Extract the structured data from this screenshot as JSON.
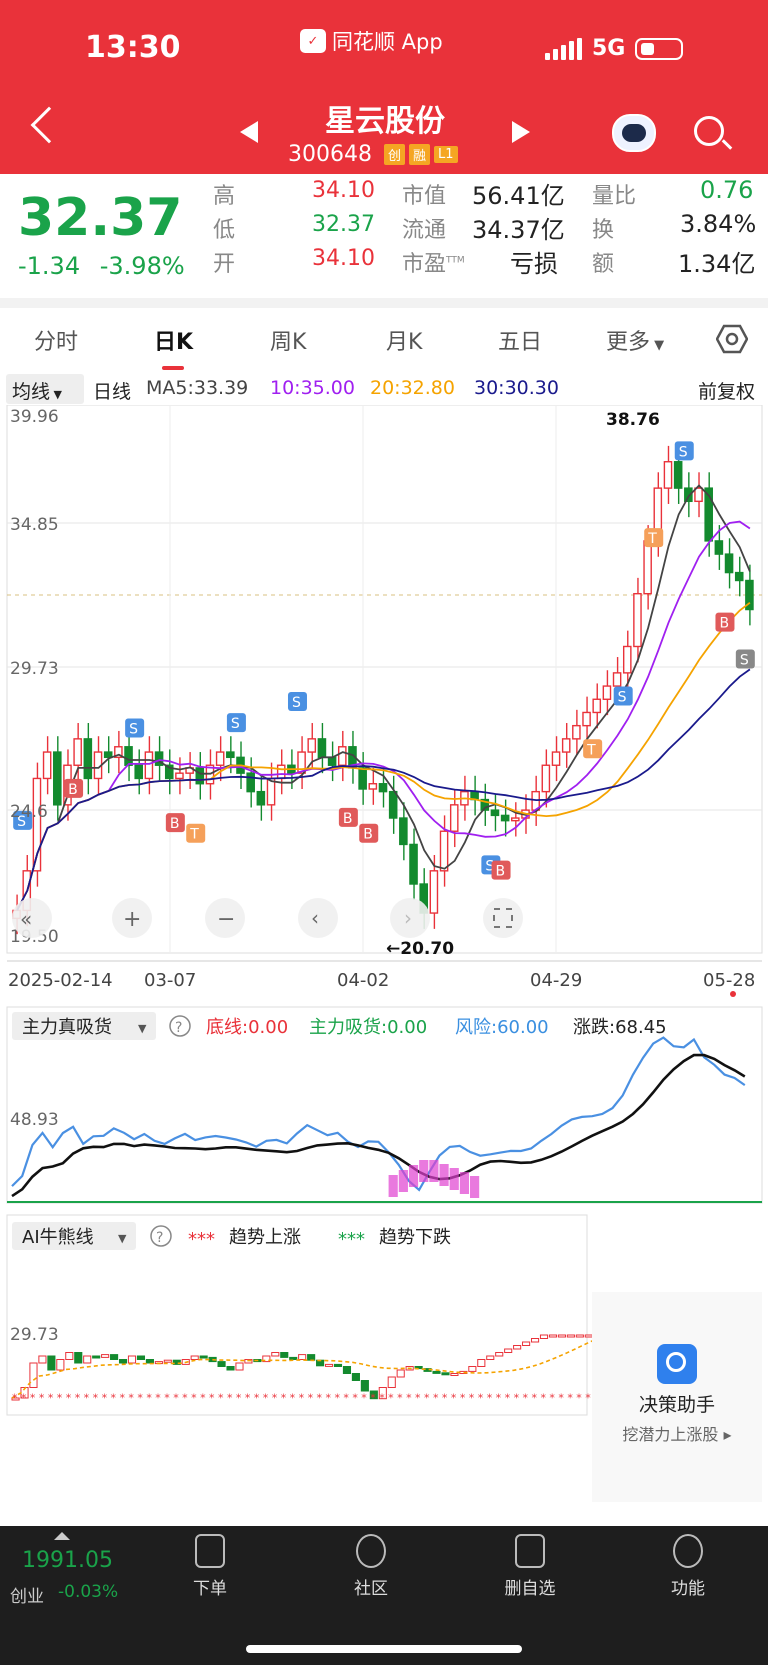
{
  "status": {
    "time": "13:30",
    "app_name": "同花顺 App",
    "network": "5G"
  },
  "header": {
    "stock_name": "星云股份",
    "code": "300648",
    "tags": [
      "创",
      "融",
      "L1"
    ]
  },
  "quote": {
    "price": "32.37",
    "change": "-1.34",
    "change_pct": "-3.98%",
    "high_label": "高",
    "high": "34.10",
    "low_label": "低",
    "low": "32.37",
    "open_label": "开",
    "open": "34.10",
    "mcap_label": "市值",
    "mcap": "56.41亿",
    "float_label": "流通",
    "float": "34.37亿",
    "pe_label": "市盈",
    "pe_sup": "TTM",
    "pe": "亏损",
    "vr_label": "量比",
    "vr": "0.76",
    "turn_label": "换",
    "turn": "3.84%",
    "amt_label": "额",
    "amt": "1.34亿"
  },
  "tabs": [
    "分时",
    "日K",
    "周K",
    "月K",
    "五日",
    "更多"
  ],
  "legend": {
    "indicator": "均线",
    "period": "日线",
    "ma5": "MA5:33.39",
    "ma10": "10:35.00",
    "ma20": "20:32.80",
    "ma30": "30:30.30",
    "adjust": "前复权"
  },
  "chart_data": {
    "type": "candlestick",
    "y_ticks": [
      "39.96",
      "34.85",
      "29.73",
      "24.6",
      "19.50"
    ],
    "x_ticks": [
      "2025-02-14",
      "03-07",
      "04-02",
      "04-29",
      "05-28"
    ],
    "high_marker": "38.76",
    "low_marker": "←20.70",
    "ylim": [
      19.5,
      39.96
    ]
  },
  "sub1": {
    "name": "主力真吸货",
    "bottom": "底线:0.00",
    "absorb": "主力吸货:0.00",
    "risk": "风险:60.00",
    "rise": "涨跌:68.45",
    "y_tick": "48.93"
  },
  "sub2": {
    "name": "AI牛熊线",
    "up": "趋势上涨",
    "down": "趋势下跌",
    "y_tick": "29.73",
    "dots": "***"
  },
  "aside": {
    "title": "决策助手",
    "subtitle": "挖潜力上涨股"
  },
  "bottom": {
    "index_value": "1991.05",
    "index_name": "创业",
    "index_chg": "-0.03%",
    "items": [
      "下单",
      "社区",
      "删自选",
      "功能"
    ]
  },
  "colors": {
    "up": "#e9323a",
    "down": "#138a2e",
    "ma5": "#444444",
    "ma10": "#a020f0",
    "ma20": "#f5a300",
    "ma30": "#1a1a8c",
    "header": "#e9323a"
  }
}
